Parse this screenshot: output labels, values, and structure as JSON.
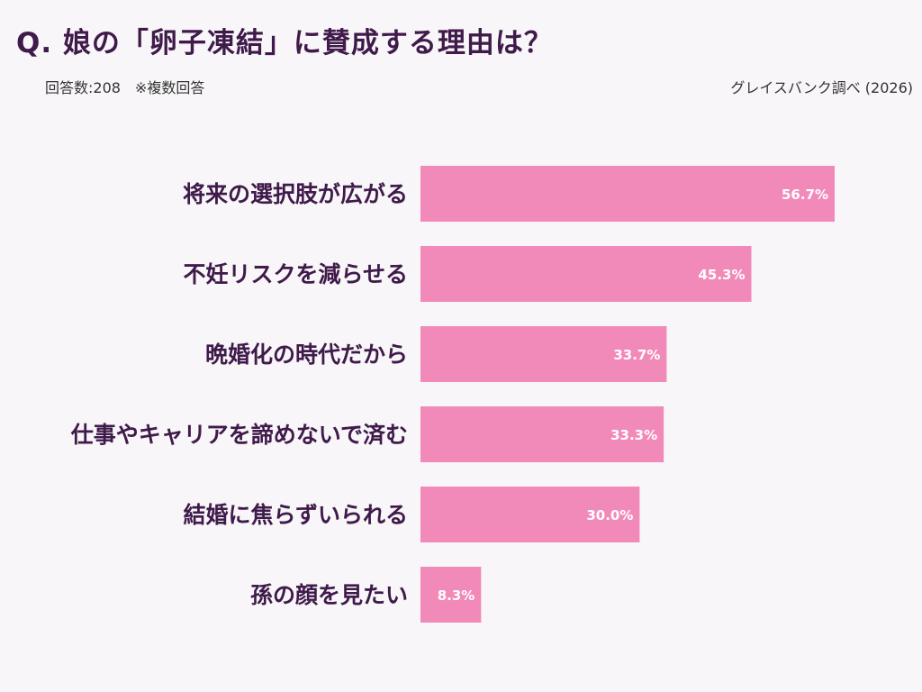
{
  "header": {
    "title": "Q. 娘の「卵子凍結」に賛成する理由は？",
    "meta": "回答数:208　※複数回答",
    "source": "グレイスバンク調べ (2026)"
  },
  "colors": {
    "bar": "#f28ab9",
    "title": "#3f1a4a",
    "background": "#f8f6f8"
  },
  "chart_data": {
    "type": "bar",
    "orientation": "horizontal",
    "title": "Q. 娘の「卵子凍結」に賛成する理由は？",
    "categories": [
      "将来の選択肢が広がる",
      "不妊リスクを減らせる",
      "晩婚化の時代だから",
      "仕事やキャリアを諦めないで済む",
      "結婚に焦らずいられる",
      "孫の顔を見たい"
    ],
    "values": [
      56.7,
      45.3,
      33.7,
      33.3,
      30.0,
      8.3
    ],
    "unit": "%",
    "grid": false
  }
}
